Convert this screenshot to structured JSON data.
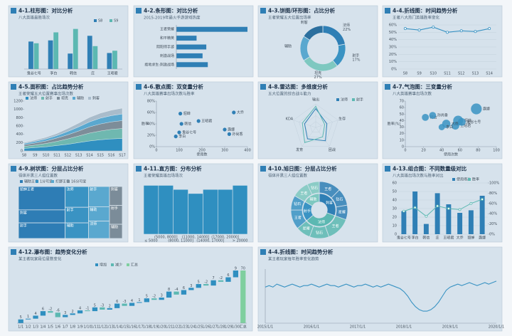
{
  "chart_data": [
    {
      "type": "bar",
      "title": "4-1.柱形图：对比分析",
      "subtitle": "八大英雄最胜场次",
      "categories": [
        "鬼谷七号",
        "李白",
        "韩信",
        "庄",
        "王昭君"
      ],
      "series": [
        {
          "name": "S8",
          "color": "#2f7fb5",
          "values": [
            48,
            50,
            27,
            58,
            28
          ]
        },
        {
          "name": "S9",
          "color": "#5cb8b2",
          "values": [
            45,
            64,
            70,
            40,
            32
          ]
        }
      ]
    },
    {
      "type": "hbar",
      "title": "4-2.条形图：对比分析",
      "subtitle": "2015-2019年最火手游游戏热度",
      "categories": [
        "王者荣耀",
        "和平精英",
        "阴阳师手游",
        "刺激战场",
        "绝地求生:刺激战场"
      ],
      "values": [
        95,
        27,
        40,
        35,
        42
      ],
      "color": "#2f7fb5"
    },
    {
      "type": "donut",
      "title": "4-3.饼图/环形图：占比分析",
      "subtitle": "王者荣耀五大位置出场率",
      "categories": [
        "法师",
        "射手",
        "坦克",
        "辅助",
        "刺客"
      ],
      "values": [
        22,
        17,
        27,
        18,
        16
      ],
      "value_labels": [
        "22%",
        "17%",
        "27%",
        null,
        null
      ],
      "colors": [
        "#2f7fb5",
        "#3a93c3",
        "#7ec8c0",
        "#5aa8cf",
        "#2b6f9e"
      ]
    },
    {
      "type": "line",
      "title": "4-4.折线图：时间趋势分析",
      "subtitle": "王者八大热门英雄胜率变化",
      "categories": [
        "S8",
        "S9",
        "S10",
        "S11",
        "S12",
        "S13",
        "S14"
      ],
      "values": [
        55,
        53,
        57,
        50,
        52,
        51,
        55
      ],
      "color": "#3a93c3",
      "ylim": [
        0,
        60
      ],
      "yticks": [
        {
          "value": 0,
          "label": "0%"
        },
        {
          "value": 10,
          "label": "10%"
        },
        {
          "value": 20,
          "label": "20%"
        },
        {
          "value": 30,
          "label": "30%"
        },
        {
          "value": 40,
          "label": "40%"
        },
        {
          "value": 50,
          "label": "50%"
        },
        {
          "value": 60,
          "label": "60%"
        }
      ],
      "grid": true
    },
    {
      "type": "area",
      "title": "4-5.面积图：占比趋势分析",
      "subtitle": "王者荣耀五大位置赛事出场次数",
      "categories": [
        "S8",
        "S9",
        "S10",
        "S11",
        "S12",
        "S13",
        "S14",
        "S15",
        "S16",
        "S17"
      ],
      "series": [
        {
          "name": "法师",
          "color": "#2f8fc0",
          "values": [
            60,
            80,
            100,
            130,
            160,
            200,
            240,
            270,
            290,
            300
          ]
        },
        {
          "name": "射手",
          "color": "#6fb8b0",
          "values": [
            50,
            60,
            80,
            100,
            130,
            160,
            190,
            210,
            230,
            240
          ]
        },
        {
          "name": "坦克",
          "color": "#7d8d99",
          "values": [
            40,
            50,
            60,
            80,
            100,
            120,
            150,
            170,
            180,
            190
          ]
        },
        {
          "name": "辅助",
          "color": "#5aa8cf",
          "values": [
            30,
            40,
            50,
            60,
            80,
            100,
            120,
            140,
            150,
            160
          ]
        },
        {
          "name": "刺客",
          "color": "#a9bccb",
          "values": [
            20,
            30,
            40,
            50,
            70,
            90,
            110,
            120,
            130,
            140
          ]
        }
      ],
      "ylim": [
        0,
        1200
      ],
      "yticks": [
        0,
        200,
        400,
        600,
        800,
        1000,
        1200
      ]
    },
    {
      "type": "scatter",
      "title": "4-6.散点图：双变量分析",
      "subtitle": "八大英雄赛事出场次数与胜率",
      "x": [
        105,
        340,
        185,
        110,
        100,
        85,
        300,
        320
      ],
      "values": [
        58,
        60,
        45,
        40,
        25,
        18,
        30,
        22
      ],
      "labels": [
        "貂蝉",
        "大乔",
        "王昭君",
        "韩信",
        "鬼谷七号",
        "李白",
        "露娜",
        "孙尚香"
      ],
      "color": "#2f7fb5",
      "xlabel": "使用数",
      "ylabel": "胜率",
      "xlim": [
        0,
        400
      ],
      "xticks": [
        0,
        100,
        200,
        300,
        400
      ],
      "ylim": [
        0,
        80
      ],
      "yticks": [
        {
          "value": 0,
          "label": "0%"
        },
        {
          "value": 20,
          "label": "20%"
        },
        {
          "value": 40,
          "label": "40%"
        },
        {
          "value": 60,
          "label": "60%"
        },
        {
          "value": 80,
          "label": "80%"
        }
      ]
    },
    {
      "type": "radar",
      "title": "4-8.雷达图：多维度分析",
      "subtitle": "五大位置的综合战斗能力",
      "axes": [
        "输出",
        "生存",
        "团战",
        "发育",
        "KDA"
      ],
      "rlim": [
        0,
        10
      ],
      "series": [
        {
          "name": "法师",
          "color": "#2f7fb5",
          "values": [
            8,
            5,
            7,
            6,
            5
          ]
        },
        {
          "name": "射手",
          "color": "#5cb8b2",
          "values": [
            9,
            4,
            5,
            8,
            6
          ]
        }
      ]
    },
    {
      "type": "bubble",
      "title": "4-7.气泡图：三变量分析",
      "subtitle": "八大英雄赛事出场次数",
      "x": [
        78,
        58,
        55,
        45,
        22,
        40,
        62,
        30
      ],
      "values": [
        58,
        40,
        32,
        35,
        45,
        30,
        38,
        48
      ],
      "sizes": [
        12,
        10,
        6,
        7,
        5,
        4,
        6,
        5
      ],
      "labels": [
        "露娜",
        "貂蝉",
        "王昭君",
        "大乔",
        "韩信",
        "李白",
        "鬼谷七号",
        "孙尚香"
      ],
      "color": "#3a93c3",
      "xlabel": "使用次数",
      "ylabel": "胜率(%)",
      "xlim": [
        0,
        100
      ],
      "xticks": [
        0,
        20,
        40,
        60,
        80,
        100
      ],
      "ylim": [
        0,
        70
      ],
      "yticks": [
        0,
        10,
        20,
        30,
        40,
        50,
        60,
        70
      ]
    },
    {
      "type": "treemap",
      "title": "4-9.树状图：分层占比分析",
      "subtitle": "得体开黑三人组位置数",
      "groups": [
        {
          "name": "辅助王者",
          "color": "#2e7db5",
          "children": [
            {
              "name": "貂蝉王者",
              "value": 18
            },
            {
              "name": "刺客",
              "value": 10
            },
            {
              "name": "射手",
              "value": 12
            }
          ]
        },
        {
          "name": "1分可爱",
          "color": "#3a93c3",
          "children": [
            {
              "name": "法师",
              "value": 8
            },
            {
              "name": "射手",
              "value": 6
            },
            {
              "name": "辅助",
              "value": 6
            }
          ]
        },
        {
          "name": "打野王者",
          "color": "#5aa8cf",
          "children": [
            {
              "name": "射手",
              "value": 7
            },
            {
              "name": "辅助",
              "value": 5
            },
            {
              "name": "法师",
              "value": 6
            }
          ]
        },
        {
          "name": "16分可爱",
          "color": "#7b8c99",
          "children": [
            {
              "name": "刺客",
              "value": 4
            },
            {
              "name": "射手",
              "value": 4
            },
            {
              "name": "辅助",
              "value": 3
            }
          ]
        }
      ]
    },
    {
      "type": "histogram",
      "title": "4-11.直方图：分布分析",
      "subtitle": "王者荣耀英雄出场场次",
      "categories": [
        "≤ 5000",
        "(5000, 8000]",
        "(8000, 11000]",
        "(11000, 14000]",
        "(14000, 17000]",
        "(17000, 20000]",
        "> 20000"
      ],
      "values": [
        12,
        12,
        11,
        10,
        11,
        11,
        12
      ],
      "color": "#2f8fc0"
    },
    {
      "type": "sunburst",
      "title": "4-10.旭日图：分层占比分析",
      "subtitle": "得体开黑三人组位置数",
      "groups": [
        {
          "name": "刺客",
          "color": "#2f7fb5",
          "children": [
            {
              "name": "王者",
              "value": 9
            },
            {
              "name": "钻石",
              "value": 7
            },
            {
              "name": "星耀",
              "value": 6
            }
          ]
        },
        {
          "name": "法师",
          "color": "#5cb8b2",
          "children": [
            {
              "name": "王者",
              "value": 10
            },
            {
              "name": "钻石",
              "value": 8
            },
            {
              "name": "星耀",
              "value": 6
            }
          ]
        },
        {
          "name": "射手",
          "color": "#3a93c3",
          "children": [
            {
              "name": "王者",
              "value": 8
            },
            {
              "name": "钻石",
              "value": 6
            }
          ]
        },
        {
          "name": "辅助",
          "color": "#7ec8c0",
          "children": [
            {
              "name": "王者",
              "value": 7
            },
            {
              "name": "钻石",
              "value": 5
            }
          ]
        }
      ]
    },
    {
      "type": "combo",
      "title": "4-13.组合图：不同数量级对比",
      "subtitle": "八大英雄出场次数与胜率对比",
      "categories": [
        "鬼谷七号",
        "李白",
        "韩信",
        "庄",
        "王昭君",
        "大乔",
        "貂蝉",
        "露娜"
      ],
      "series": [
        {
          "name": "使用场次",
          "type": "bar",
          "color": "#2f7fb5",
          "values": [
            27,
            50,
            12,
            48,
            35,
            25,
            28,
            45
          ]
        },
        {
          "name": "胜率",
          "type": "line",
          "axis": "y2",
          "color": "#5cb8b2",
          "values": [
            45,
            52,
            35,
            55,
            50,
            48,
            60,
            68
          ]
        }
      ],
      "ylim": [
        0,
        60
      ],
      "yticks": [
        0,
        10,
        20,
        30,
        40,
        50,
        60
      ],
      "y2lim": [
        0,
        100
      ],
      "y2ticks": [
        {
          "value": 0,
          "label": "0%"
        },
        {
          "value": 20,
          "label": "20%"
        },
        {
          "value": 40,
          "label": "40%"
        },
        {
          "value": 60,
          "label": "60%"
        },
        {
          "value": 80,
          "label": "80%"
        },
        {
          "value": 100,
          "label": "100%"
        }
      ]
    },
    {
      "type": "waterfall",
      "title": "4-12.瀑布图：趋势变化分析",
      "subtitle": "某王者玩家段位星数变化",
      "legend": [
        {
          "name": "增加",
          "color": "#2f8fc0"
        },
        {
          "name": "减少",
          "color": "#5cb8b2"
        },
        {
          "name": "汇总",
          "color": "#7fcf9f"
        }
      ],
      "categories": [
        "1/1",
        "1/2",
        "1/3",
        "1/4",
        "1/5",
        "1/6",
        "1/7",
        "1/8",
        "1/9",
        "1/10",
        "1/11",
        "1/12",
        "1/13",
        "1/14",
        "1/15",
        "1/16",
        "1/17",
        "1/18",
        "1/19",
        "1/20",
        "1/21",
        "1/22",
        "1/23",
        "1/24",
        "1/25",
        "1/26",
        "1/27",
        "1/28",
        "1/29",
        "1/30",
        "汇总"
      ],
      "values": [
        5,
        1,
        4,
        6,
        -2,
        -6,
        3,
        2,
        4,
        -1,
        5,
        -3,
        2,
        6,
        -3,
        4,
        1,
        5,
        -2,
        3,
        8,
        -4,
        6,
        3,
        5,
        -2,
        7,
        -2,
        6,
        9,
        70
      ]
    },
    {
      "type": "longline",
      "title": "4-4.折线图：时间趋势分析",
      "subtitle": "某王者玩家每年胜率变化趋势",
      "color": "#3a93c3",
      "categories": [
        "2015/1/1",
        null,
        null,
        null,
        null,
        null,
        null,
        null,
        null,
        null,
        null,
        null,
        "2016/1/1",
        null,
        null,
        null,
        null,
        null,
        null,
        null,
        null,
        null,
        null,
        null,
        "2017/1/1",
        null,
        null,
        null,
        null,
        null,
        null,
        null,
        null,
        null,
        null,
        null,
        "2018/1/1",
        null,
        null,
        null,
        null,
        null,
        null,
        null,
        null,
        null,
        null,
        null,
        "2019/1/1",
        null,
        null,
        null,
        null,
        null,
        null,
        null,
        null,
        null,
        null,
        null,
        "2020/1/1"
      ],
      "values": [
        60,
        61,
        60,
        62,
        61,
        60,
        61,
        62,
        61,
        60,
        61,
        61,
        62,
        61,
        60,
        61,
        62,
        61,
        61,
        60,
        61,
        62,
        61,
        60,
        61,
        61,
        62,
        61,
        60,
        61,
        60,
        61,
        62,
        61,
        60,
        59,
        57,
        54,
        50,
        47,
        45,
        44,
        44,
        45,
        47,
        50,
        54,
        58,
        60,
        61,
        62,
        61,
        62,
        63,
        62,
        61,
        62,
        63,
        62,
        63,
        64
      ]
    }
  ]
}
